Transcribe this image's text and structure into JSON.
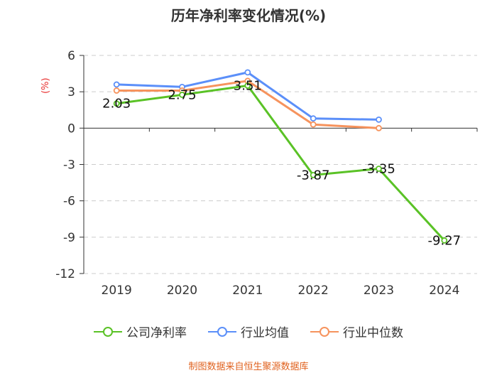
{
  "chart_data": {
    "type": "line",
    "title": "历年净利率变化情况(%)",
    "ylabel": "(%)",
    "xlabel": "",
    "categories": [
      "2019",
      "2020",
      "2021",
      "2022",
      "2023",
      "2024"
    ],
    "ylim": [
      -12,
      6
    ],
    "yticks": [
      6,
      3,
      0,
      -3,
      -6,
      -9,
      -12
    ],
    "grid": true,
    "legend_position": "bottom",
    "series": [
      {
        "name": "公司净利率",
        "color": "#5ac226",
        "values": [
          2.03,
          2.75,
          3.51,
          -3.87,
          -3.35,
          -9.27
        ],
        "labels": [
          "2.03",
          "2.75",
          "3.51",
          "-3.87",
          "-3.35",
          "-9.27"
        ]
      },
      {
        "name": "行业均值",
        "color": "#5b8ff9",
        "values": [
          3.6,
          3.4,
          4.6,
          0.8,
          0.7,
          null
        ]
      },
      {
        "name": "行业中位数",
        "color": "#f6935d",
        "values": [
          3.1,
          3.1,
          3.9,
          0.3,
          0.0,
          null
        ]
      }
    ]
  },
  "source": "制图数据来自恒生聚源数据库"
}
